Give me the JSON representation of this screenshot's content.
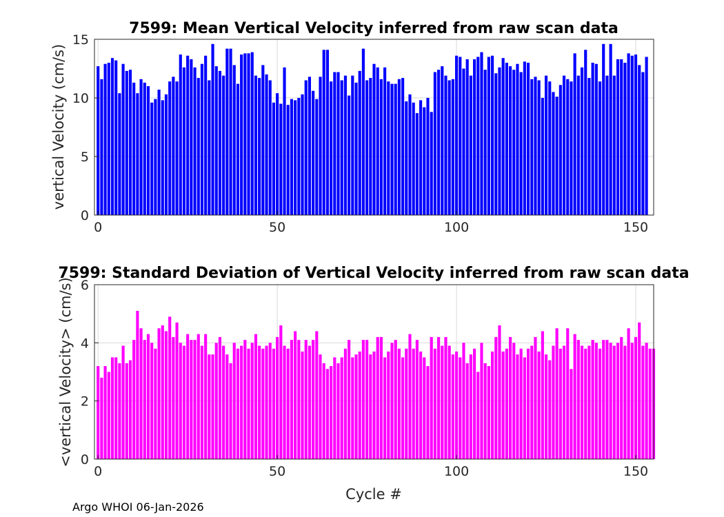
{
  "footer": "Argo WHOI 06-Jan-2026",
  "chart_data": [
    {
      "type": "bar",
      "title": "7599: Mean Vertical Velocity inferred from raw scan data",
      "xlabel": "",
      "ylabel": "vertical Velocity (cm/s)",
      "xlim": [
        -1,
        155
      ],
      "ylim": [
        0,
        15
      ],
      "xticks": [
        0,
        50,
        100,
        150
      ],
      "yticks": [
        0,
        5,
        10,
        15
      ],
      "grid": true,
      "color": "#0000ff",
      "x_start": 0,
      "values": [
        12.7,
        11.6,
        12.9,
        13.0,
        13.4,
        13.2,
        10.4,
        12.9,
        12.3,
        12.4,
        11.3,
        10.4,
        11.6,
        11.3,
        11.0,
        9.6,
        9.9,
        10.7,
        9.8,
        10.3,
        11.4,
        11.8,
        11.4,
        13.7,
        12.6,
        13.6,
        13.3,
        12.6,
        11.7,
        12.9,
        13.6,
        11.5,
        14.6,
        12.7,
        12.3,
        11.9,
        14.2,
        14.2,
        12.8,
        11.2,
        13.7,
        13.8,
        13.8,
        13.9,
        11.9,
        11.7,
        12.8,
        12.0,
        11.5,
        9.6,
        10.4,
        9.5,
        12.6,
        9.4,
        9.9,
        9.8,
        10.0,
        10.3,
        11.5,
        11.8,
        10.6,
        9.9,
        11.8,
        14.1,
        14.1,
        11.4,
        12.2,
        12.2,
        11.5,
        11.9,
        10.2,
        11.9,
        11.3,
        12.3,
        14.2,
        11.5,
        11.7,
        12.9,
        12.6,
        11.6,
        12.6,
        11.4,
        11.2,
        11.2,
        11.6,
        11.7,
        9.7,
        10.3,
        9.6,
        8.7,
        9.8,
        9.2,
        10.0,
        8.8,
        12.2,
        12.4,
        12.7,
        11.9,
        11.5,
        11.6,
        13.6,
        13.5,
        12.5,
        13.3,
        11.9,
        13.3,
        13.5,
        13.9,
        12.4,
        13.5,
        13.6,
        12.1,
        12.6,
        13.4,
        13.0,
        12.7,
        12.4,
        12.9,
        12.2,
        13.1,
        13.0,
        11.6,
        11.8,
        11.5,
        10.0,
        11.9,
        11.4,
        10.5,
        10.1,
        11.1,
        11.9,
        11.6,
        11.4,
        13.8,
        11.9,
        12.6,
        14.1,
        11.7,
        13.0,
        12.9,
        11.4,
        14.6,
        11.9,
        14.6,
        11.9,
        13.3,
        13.3,
        13.0,
        13.8,
        13.6,
        13.7,
        12.8,
        12.2,
        13.5
      ]
    },
    {
      "type": "bar",
      "title": "7599: Standard Deviation of Vertical Velocity inferred from raw scan data",
      "xlabel": "Cycle #",
      "ylabel": "<vertical Velocity> (cm/s)",
      "xlim": [
        -1,
        155
      ],
      "ylim": [
        0,
        6
      ],
      "xticks": [
        0,
        50,
        100,
        150
      ],
      "yticks": [
        0,
        2,
        4,
        6
      ],
      "grid": true,
      "color": "#ff00ff",
      "x_start": 0,
      "values": [
        3.2,
        2.8,
        3.2,
        3.0,
        3.5,
        3.5,
        3.3,
        3.9,
        3.3,
        3.4,
        4.1,
        5.1,
        4.5,
        4.1,
        4.3,
        4.0,
        3.8,
        4.5,
        4.6,
        4.4,
        4.9,
        4.2,
        4.7,
        4.0,
        3.9,
        4.3,
        4.1,
        4.1,
        4.3,
        3.9,
        4.3,
        3.6,
        3.6,
        4.0,
        4.2,
        3.9,
        3.6,
        3.3,
        4.0,
        3.8,
        3.9,
        4.1,
        3.8,
        4.0,
        4.3,
        3.9,
        3.8,
        3.9,
        4.0,
        3.8,
        4.2,
        4.6,
        3.9,
        3.8,
        4.1,
        4.4,
        4.1,
        3.7,
        4.1,
        3.9,
        4.1,
        4.4,
        3.6,
        3.3,
        3.1,
        3.2,
        3.5,
        3.3,
        3.5,
        3.8,
        4.1,
        3.5,
        3.6,
        3.7,
        4.1,
        4.1,
        3.6,
        3.7,
        4.2,
        4.2,
        3.5,
        3.7,
        4.0,
        4.1,
        3.8,
        3.5,
        3.8,
        4.3,
        3.8,
        4.1,
        3.7,
        3.5,
        3.2,
        4.2,
        3.8,
        4.2,
        3.9,
        4.2,
        3.9,
        3.6,
        3.7,
        3.5,
        4.0,
        3.3,
        3.6,
        3.8,
        3.0,
        4.0,
        3.3,
        3.2,
        3.7,
        4.2,
        4.6,
        3.7,
        3.8,
        4.2,
        4.0,
        3.6,
        3.8,
        3.5,
        3.8,
        3.9,
        4.2,
        3.7,
        4.4,
        3.6,
        3.4,
        3.9,
        4.5,
        3.8,
        3.9,
        4.5,
        3.1,
        4.3,
        4.1,
        3.9,
        3.8,
        3.9,
        4.1,
        4.0,
        3.8,
        4.1,
        4.1,
        4.0,
        3.9,
        4.0,
        4.2,
        3.9,
        4.5,
        4.0,
        4.2,
        4.7,
        3.9,
        4.0,
        3.8,
        3.8
      ]
    }
  ]
}
